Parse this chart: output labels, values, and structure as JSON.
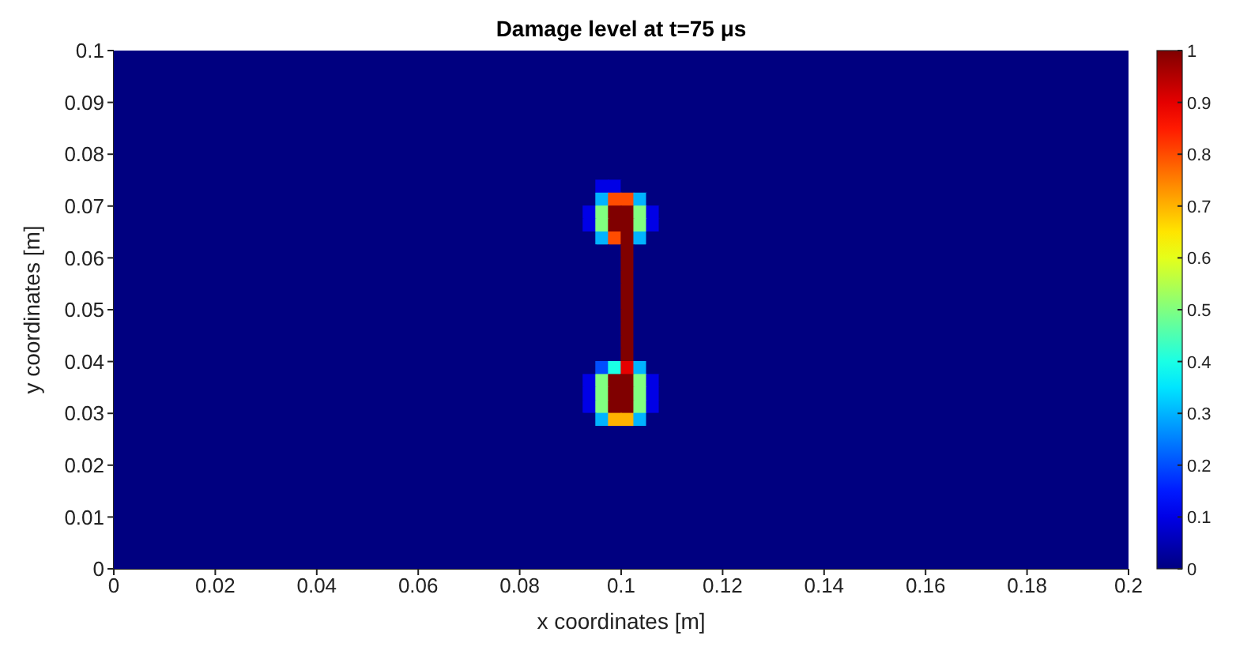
{
  "chart_data": {
    "type": "heatmap",
    "title": "Damage level at t=75 μs",
    "xlabel": "x coordinates [m]",
    "ylabel": "y coordinates [m]",
    "xlim": [
      0,
      0.2
    ],
    "xticks": [
      0,
      0.02,
      0.04,
      0.06,
      0.08,
      0.1,
      0.12,
      0.14,
      0.16,
      0.18,
      0.2
    ],
    "ylim": [
      0,
      0.1
    ],
    "yticks": [
      0,
      0.01,
      0.02,
      0.03,
      0.04,
      0.05,
      0.06,
      0.07,
      0.08,
      0.09,
      0.1
    ],
    "clim": [
      0,
      1
    ],
    "cticks": [
      0,
      0.1,
      0.2,
      0.3,
      0.4,
      0.5,
      0.6,
      0.7,
      0.8,
      0.9,
      1
    ],
    "grid": false,
    "cells": [
      [
        0,
        0,
        0,
        0,
        0,
        0,
        0,
        0,
        0,
        0,
        0,
        0,
        0,
        0,
        0,
        0,
        0,
        0,
        0,
        0,
        0,
        0,
        0,
        0,
        0,
        0,
        0,
        0,
        0,
        0,
        0,
        0,
        0,
        0,
        0,
        0,
        0,
        0,
        0,
        0,
        0,
        0,
        0,
        0,
        0,
        0,
        0,
        0,
        0,
        0,
        0,
        0,
        0,
        0,
        0,
        0,
        0,
        0,
        0,
        0,
        0,
        0,
        0,
        0,
        0,
        0,
        0,
        0,
        0,
        0,
        0,
        0,
        0,
        0,
        0,
        0,
        0,
        0,
        0,
        0
      ],
      [
        0,
        0,
        0,
        0,
        0,
        0,
        0,
        0,
        0,
        0,
        0,
        0,
        0,
        0,
        0,
        0,
        0,
        0,
        0,
        0,
        0,
        0,
        0,
        0,
        0,
        0,
        0,
        0,
        0,
        0,
        0,
        0,
        0,
        0,
        0,
        0,
        0,
        0,
        0,
        0,
        0,
        0,
        0,
        0,
        0,
        0,
        0,
        0,
        0,
        0,
        0,
        0,
        0,
        0,
        0,
        0,
        0,
        0,
        0,
        0,
        0,
        0,
        0,
        0,
        0,
        0,
        0,
        0,
        0,
        0,
        0,
        0,
        0,
        0,
        0,
        0,
        0,
        0,
        0,
        0
      ],
      [
        0,
        0,
        0,
        0,
        0,
        0,
        0,
        0,
        0,
        0,
        0,
        0,
        0,
        0,
        0,
        0,
        0,
        0,
        0,
        0,
        0,
        0,
        0,
        0,
        0,
        0,
        0,
        0,
        0,
        0,
        0,
        0,
        0,
        0,
        0,
        0,
        0,
        0,
        0,
        0,
        0,
        0,
        0,
        0,
        0,
        0,
        0,
        0,
        0,
        0,
        0,
        0,
        0,
        0,
        0,
        0,
        0,
        0,
        0,
        0,
        0,
        0,
        0,
        0,
        0,
        0,
        0,
        0,
        0,
        0,
        0,
        0,
        0,
        0,
        0,
        0,
        0,
        0,
        0,
        0
      ],
      [
        0,
        0,
        0,
        0,
        0,
        0,
        0,
        0,
        0,
        0,
        0,
        0,
        0,
        0,
        0,
        0,
        0,
        0,
        0,
        0,
        0,
        0,
        0,
        0,
        0,
        0,
        0,
        0,
        0,
        0,
        0,
        0,
        0,
        0,
        0,
        0,
        0,
        0,
        0,
        0,
        0,
        0,
        0,
        0,
        0,
        0,
        0,
        0,
        0,
        0,
        0,
        0,
        0,
        0,
        0,
        0,
        0,
        0,
        0,
        0,
        0,
        0,
        0,
        0,
        0,
        0,
        0,
        0,
        0,
        0,
        0,
        0,
        0,
        0,
        0,
        0,
        0,
        0,
        0,
        0
      ],
      [
        0,
        0,
        0,
        0,
        0,
        0,
        0,
        0,
        0,
        0,
        0,
        0,
        0,
        0,
        0,
        0,
        0,
        0,
        0,
        0,
        0,
        0,
        0,
        0,
        0,
        0,
        0,
        0,
        0,
        0,
        0,
        0,
        0,
        0,
        0,
        0,
        0,
        0,
        0,
        0,
        0,
        0,
        0,
        0,
        0,
        0,
        0,
        0,
        0,
        0,
        0,
        0,
        0,
        0,
        0,
        0,
        0,
        0,
        0,
        0,
        0,
        0,
        0,
        0,
        0,
        0,
        0,
        0,
        0,
        0,
        0,
        0,
        0,
        0,
        0,
        0,
        0,
        0,
        0,
        0
      ],
      [
        0,
        0,
        0,
        0,
        0,
        0,
        0,
        0,
        0,
        0,
        0,
        0,
        0,
        0,
        0,
        0,
        0,
        0,
        0,
        0,
        0,
        0,
        0,
        0,
        0,
        0,
        0,
        0,
        0,
        0,
        0,
        0,
        0,
        0,
        0,
        0,
        0,
        0,
        0,
        0,
        0,
        0,
        0,
        0,
        0,
        0,
        0,
        0,
        0,
        0,
        0,
        0,
        0,
        0,
        0,
        0,
        0,
        0,
        0,
        0,
        0,
        0,
        0,
        0,
        0,
        0,
        0,
        0,
        0,
        0,
        0,
        0,
        0,
        0,
        0,
        0,
        0,
        0,
        0,
        0
      ],
      [
        0,
        0,
        0,
        0,
        0,
        0,
        0,
        0,
        0,
        0,
        0,
        0,
        0,
        0,
        0,
        0,
        0,
        0,
        0,
        0,
        0,
        0,
        0,
        0,
        0,
        0,
        0,
        0,
        0,
        0,
        0,
        0,
        0,
        0,
        0,
        0,
        0,
        0,
        0,
        0,
        0,
        0,
        0,
        0,
        0,
        0,
        0,
        0,
        0,
        0,
        0,
        0,
        0,
        0,
        0,
        0,
        0,
        0,
        0,
        0,
        0,
        0,
        0,
        0,
        0,
        0,
        0,
        0,
        0,
        0,
        0,
        0,
        0,
        0,
        0,
        0,
        0,
        0,
        0,
        0
      ],
      [
        0,
        0,
        0,
        0,
        0,
        0,
        0,
        0,
        0,
        0,
        0,
        0,
        0,
        0,
        0,
        0,
        0,
        0,
        0,
        0,
        0,
        0,
        0,
        0,
        0,
        0,
        0,
        0,
        0,
        0,
        0,
        0,
        0,
        0,
        0,
        0,
        0,
        0,
        0,
        0,
        0,
        0,
        0,
        0,
        0,
        0,
        0,
        0,
        0,
        0,
        0,
        0,
        0,
        0,
        0,
        0,
        0,
        0,
        0,
        0,
        0,
        0,
        0,
        0,
        0,
        0,
        0,
        0,
        0,
        0,
        0,
        0,
        0,
        0,
        0,
        0,
        0,
        0,
        0,
        0
      ],
      [
        0,
        0,
        0,
        0,
        0,
        0,
        0,
        0,
        0,
        0,
        0,
        0,
        0,
        0,
        0,
        0,
        0,
        0,
        0,
        0,
        0,
        0,
        0,
        0,
        0,
        0,
        0,
        0,
        0,
        0,
        0,
        0,
        0,
        0,
        0,
        0,
        0,
        0,
        0,
        0,
        0,
        0,
        0,
        0,
        0,
        0,
        0,
        0,
        0,
        0,
        0,
        0,
        0,
        0,
        0,
        0,
        0,
        0,
        0,
        0,
        0,
        0,
        0,
        0,
        0,
        0,
        0,
        0,
        0,
        0,
        0,
        0,
        0,
        0,
        0,
        0,
        0,
        0,
        0,
        0
      ],
      [
        0,
        0,
        0,
        0,
        0,
        0,
        0,
        0,
        0,
        0,
        0,
        0,
        0,
        0,
        0,
        0,
        0,
        0,
        0,
        0,
        0,
        0,
        0,
        0,
        0,
        0,
        0,
        0,
        0,
        0,
        0,
        0,
        0,
        0,
        0,
        0,
        0,
        0,
        0,
        0,
        0,
        0,
        0,
        0,
        0,
        0,
        0,
        0,
        0,
        0,
        0,
        0,
        0,
        0,
        0,
        0,
        0,
        0,
        0,
        0,
        0,
        0,
        0,
        0,
        0,
        0,
        0,
        0,
        0,
        0,
        0,
        0,
        0,
        0,
        0,
        0,
        0,
        0,
        0,
        0
      ],
      [
        0,
        0,
        0,
        0,
        0,
        0,
        0,
        0,
        0,
        0,
        0,
        0,
        0,
        0,
        0,
        0,
        0,
        0,
        0,
        0,
        0,
        0,
        0,
        0,
        0,
        0,
        0,
        0,
        0,
        0,
        0,
        0,
        0,
        0,
        0,
        0,
        0,
        0,
        0.1,
        0.1,
        0,
        0,
        0,
        0,
        0,
        0,
        0,
        0,
        0,
        0,
        0,
        0,
        0,
        0,
        0,
        0,
        0,
        0,
        0,
        0,
        0,
        0,
        0,
        0,
        0,
        0,
        0,
        0,
        0,
        0,
        0,
        0,
        0,
        0,
        0,
        0,
        0,
        0,
        0,
        0
      ],
      [
        0,
        0,
        0,
        0,
        0,
        0,
        0,
        0,
        0,
        0,
        0,
        0,
        0,
        0,
        0,
        0,
        0,
        0,
        0,
        0,
        0,
        0,
        0,
        0,
        0,
        0,
        0,
        0,
        0,
        0,
        0,
        0,
        0,
        0,
        0,
        0,
        0,
        0,
        0.3,
        0.8,
        0.8,
        0.3,
        0,
        0,
        0,
        0,
        0,
        0,
        0,
        0,
        0,
        0,
        0,
        0,
        0,
        0,
        0,
        0,
        0,
        0,
        0,
        0,
        0,
        0,
        0,
        0,
        0,
        0,
        0,
        0,
        0,
        0,
        0,
        0,
        0,
        0,
        0,
        0,
        0,
        0
      ],
      [
        0,
        0,
        0,
        0,
        0,
        0,
        0,
        0,
        0,
        0,
        0,
        0,
        0,
        0,
        0,
        0,
        0,
        0,
        0,
        0,
        0,
        0,
        0,
        0,
        0,
        0,
        0,
        0,
        0,
        0,
        0,
        0,
        0,
        0,
        0,
        0,
        0,
        0.1,
        0.5,
        1,
        1,
        0.5,
        0.1,
        0,
        0,
        0,
        0,
        0,
        0,
        0,
        0,
        0,
        0,
        0,
        0,
        0,
        0,
        0,
        0,
        0,
        0,
        0,
        0,
        0,
        0,
        0,
        0,
        0,
        0,
        0,
        0,
        0,
        0,
        0,
        0,
        0,
        0,
        0,
        0,
        0
      ],
      [
        0,
        0,
        0,
        0,
        0,
        0,
        0,
        0,
        0,
        0,
        0,
        0,
        0,
        0,
        0,
        0,
        0,
        0,
        0,
        0,
        0,
        0,
        0,
        0,
        0,
        0,
        0,
        0,
        0,
        0,
        0,
        0,
        0,
        0,
        0,
        0,
        0,
        0.1,
        0.5,
        1,
        1,
        0.5,
        0.1,
        0,
        0,
        0,
        0,
        0,
        0,
        0,
        0,
        0,
        0,
        0,
        0,
        0,
        0,
        0,
        0,
        0,
        0,
        0,
        0,
        0,
        0,
        0,
        0,
        0,
        0,
        0,
        0,
        0,
        0,
        0,
        0,
        0,
        0,
        0,
        0,
        0
      ],
      [
        0,
        0,
        0,
        0,
        0,
        0,
        0,
        0,
        0,
        0,
        0,
        0,
        0,
        0,
        0,
        0,
        0,
        0,
        0,
        0,
        0,
        0,
        0,
        0,
        0,
        0,
        0,
        0,
        0,
        0,
        0,
        0,
        0,
        0,
        0,
        0,
        0,
        0,
        0.3,
        0.8,
        1,
        0.3,
        0,
        0,
        0,
        0,
        0,
        0,
        0,
        0,
        0,
        0,
        0,
        0,
        0,
        0,
        0,
        0,
        0,
        0,
        0,
        0,
        0,
        0,
        0,
        0,
        0,
        0,
        0,
        0,
        0,
        0,
        0,
        0,
        0,
        0,
        0,
        0,
        0,
        0
      ],
      [
        0,
        0,
        0,
        0,
        0,
        0,
        0,
        0,
        0,
        0,
        0,
        0,
        0,
        0,
        0,
        0,
        0,
        0,
        0,
        0,
        0,
        0,
        0,
        0,
        0,
        0,
        0,
        0,
        0,
        0,
        0,
        0,
        0,
        0,
        0,
        0,
        0,
        0,
        0,
        0,
        1,
        0,
        0,
        0,
        0,
        0,
        0,
        0,
        0,
        0,
        0,
        0,
        0,
        0,
        0,
        0,
        0,
        0,
        0,
        0,
        0,
        0,
        0,
        0,
        0,
        0,
        0,
        0,
        0,
        0,
        0,
        0,
        0,
        0,
        0,
        0,
        0,
        0,
        0,
        0
      ],
      [
        0,
        0,
        0,
        0,
        0,
        0,
        0,
        0,
        0,
        0,
        0,
        0,
        0,
        0,
        0,
        0,
        0,
        0,
        0,
        0,
        0,
        0,
        0,
        0,
        0,
        0,
        0,
        0,
        0,
        0,
        0,
        0,
        0,
        0,
        0,
        0,
        0,
        0,
        0,
        0,
        1,
        0,
        0,
        0,
        0,
        0,
        0,
        0,
        0,
        0,
        0,
        0,
        0,
        0,
        0,
        0,
        0,
        0,
        0,
        0,
        0,
        0,
        0,
        0,
        0,
        0,
        0,
        0,
        0,
        0,
        0,
        0,
        0,
        0,
        0,
        0,
        0,
        0,
        0,
        0
      ],
      [
        0,
        0,
        0,
        0,
        0,
        0,
        0,
        0,
        0,
        0,
        0,
        0,
        0,
        0,
        0,
        0,
        0,
        0,
        0,
        0,
        0,
        0,
        0,
        0,
        0,
        0,
        0,
        0,
        0,
        0,
        0,
        0,
        0,
        0,
        0,
        0,
        0,
        0,
        0,
        0,
        1,
        0,
        0,
        0,
        0,
        0,
        0,
        0,
        0,
        0,
        0,
        0,
        0,
        0,
        0,
        0,
        0,
        0,
        0,
        0,
        0,
        0,
        0,
        0,
        0,
        0,
        0,
        0,
        0,
        0,
        0,
        0,
        0,
        0,
        0,
        0,
        0,
        0,
        0,
        0
      ],
      [
        0,
        0,
        0,
        0,
        0,
        0,
        0,
        0,
        0,
        0,
        0,
        0,
        0,
        0,
        0,
        0,
        0,
        0,
        0,
        0,
        0,
        0,
        0,
        0,
        0,
        0,
        0,
        0,
        0,
        0,
        0,
        0,
        0,
        0,
        0,
        0,
        0,
        0,
        0,
        0,
        1,
        0,
        0,
        0,
        0,
        0,
        0,
        0,
        0,
        0,
        0,
        0,
        0,
        0,
        0,
        0,
        0,
        0,
        0,
        0,
        0,
        0,
        0,
        0,
        0,
        0,
        0,
        0,
        0,
        0,
        0,
        0,
        0,
        0,
        0,
        0,
        0,
        0,
        0,
        0
      ],
      [
        0,
        0,
        0,
        0,
        0,
        0,
        0,
        0,
        0,
        0,
        0,
        0,
        0,
        0,
        0,
        0,
        0,
        0,
        0,
        0,
        0,
        0,
        0,
        0,
        0,
        0,
        0,
        0,
        0,
        0,
        0,
        0,
        0,
        0,
        0,
        0,
        0,
        0,
        0,
        0,
        1,
        0,
        0,
        0,
        0,
        0,
        0,
        0,
        0,
        0,
        0,
        0,
        0,
        0,
        0,
        0,
        0,
        0,
        0,
        0,
        0,
        0,
        0,
        0,
        0,
        0,
        0,
        0,
        0,
        0,
        0,
        0,
        0,
        0,
        0,
        0,
        0,
        0,
        0,
        0
      ],
      [
        0,
        0,
        0,
        0,
        0,
        0,
        0,
        0,
        0,
        0,
        0,
        0,
        0,
        0,
        0,
        0,
        0,
        0,
        0,
        0,
        0,
        0,
        0,
        0,
        0,
        0,
        0,
        0,
        0,
        0,
        0,
        0,
        0,
        0,
        0,
        0,
        0,
        0,
        0,
        0,
        1,
        0,
        0,
        0,
        0,
        0,
        0,
        0,
        0,
        0,
        0,
        0,
        0,
        0,
        0,
        0,
        0,
        0,
        0,
        0,
        0,
        0,
        0,
        0,
        0,
        0,
        0,
        0,
        0,
        0,
        0,
        0,
        0,
        0,
        0,
        0,
        0,
        0,
        0,
        0
      ],
      [
        0,
        0,
        0,
        0,
        0,
        0,
        0,
        0,
        0,
        0,
        0,
        0,
        0,
        0,
        0,
        0,
        0,
        0,
        0,
        0,
        0,
        0,
        0,
        0,
        0,
        0,
        0,
        0,
        0,
        0,
        0,
        0,
        0,
        0,
        0,
        0,
        0,
        0,
        0,
        0,
        1,
        0,
        0,
        0,
        0,
        0,
        0,
        0,
        0,
        0,
        0,
        0,
        0,
        0,
        0,
        0,
        0,
        0,
        0,
        0,
        0,
        0,
        0,
        0,
        0,
        0,
        0,
        0,
        0,
        0,
        0,
        0,
        0,
        0,
        0,
        0,
        0,
        0,
        0,
        0
      ],
      [
        0,
        0,
        0,
        0,
        0,
        0,
        0,
        0,
        0,
        0,
        0,
        0,
        0,
        0,
        0,
        0,
        0,
        0,
        0,
        0,
        0,
        0,
        0,
        0,
        0,
        0,
        0,
        0,
        0,
        0,
        0,
        0,
        0,
        0,
        0,
        0,
        0,
        0,
        0,
        0,
        1,
        0,
        0,
        0,
        0,
        0,
        0,
        0,
        0,
        0,
        0,
        0,
        0,
        0,
        0,
        0,
        0,
        0,
        0,
        0,
        0,
        0,
        0,
        0,
        0,
        0,
        0,
        0,
        0,
        0,
        0,
        0,
        0,
        0,
        0,
        0,
        0,
        0,
        0,
        0
      ],
      [
        0,
        0,
        0,
        0,
        0,
        0,
        0,
        0,
        0,
        0,
        0,
        0,
        0,
        0,
        0,
        0,
        0,
        0,
        0,
        0,
        0,
        0,
        0,
        0,
        0,
        0,
        0,
        0,
        0,
        0,
        0,
        0,
        0,
        0,
        0,
        0,
        0,
        0,
        0,
        0,
        1,
        0,
        0,
        0,
        0,
        0,
        0,
        0,
        0,
        0,
        0,
        0,
        0,
        0,
        0,
        0,
        0,
        0,
        0,
        0,
        0,
        0,
        0,
        0,
        0,
        0,
        0,
        0,
        0,
        0,
        0,
        0,
        0,
        0,
        0,
        0,
        0,
        0,
        0,
        0
      ],
      [
        0,
        0,
        0,
        0,
        0,
        0,
        0,
        0,
        0,
        0,
        0,
        0,
        0,
        0,
        0,
        0,
        0,
        0,
        0,
        0,
        0,
        0,
        0,
        0,
        0,
        0,
        0,
        0,
        0,
        0,
        0,
        0,
        0,
        0,
        0,
        0,
        0,
        0,
        0.2,
        0.4,
        0.9,
        0.3,
        0,
        0,
        0,
        0,
        0,
        0,
        0,
        0,
        0,
        0,
        0,
        0,
        0,
        0,
        0,
        0,
        0,
        0,
        0,
        0,
        0,
        0,
        0,
        0,
        0,
        0,
        0,
        0,
        0,
        0,
        0,
        0,
        0,
        0,
        0,
        0,
        0,
        0
      ],
      [
        0,
        0,
        0,
        0,
        0,
        0,
        0,
        0,
        0,
        0,
        0,
        0,
        0,
        0,
        0,
        0,
        0,
        0,
        0,
        0,
        0,
        0,
        0,
        0,
        0,
        0,
        0,
        0,
        0,
        0,
        0,
        0,
        0,
        0,
        0,
        0,
        0,
        0.1,
        0.5,
        1,
        1,
        0.5,
        0.1,
        0,
        0,
        0,
        0,
        0,
        0,
        0,
        0,
        0,
        0,
        0,
        0,
        0,
        0,
        0,
        0,
        0,
        0,
        0,
        0,
        0,
        0,
        0,
        0,
        0,
        0,
        0,
        0,
        0,
        0,
        0,
        0,
        0,
        0,
        0,
        0,
        0
      ],
      [
        0,
        0,
        0,
        0,
        0,
        0,
        0,
        0,
        0,
        0,
        0,
        0,
        0,
        0,
        0,
        0,
        0,
        0,
        0,
        0,
        0,
        0,
        0,
        0,
        0,
        0,
        0,
        0,
        0,
        0,
        0,
        0,
        0,
        0,
        0,
        0,
        0,
        0.1,
        0.5,
        1,
        1,
        0.5,
        0.1,
        0,
        0,
        0,
        0,
        0,
        0,
        0,
        0,
        0,
        0,
        0,
        0,
        0,
        0,
        0,
        0,
        0,
        0,
        0,
        0,
        0,
        0,
        0,
        0,
        0,
        0,
        0,
        0,
        0,
        0,
        0,
        0,
        0,
        0,
        0,
        0,
        0
      ],
      [
        0,
        0,
        0,
        0,
        0,
        0,
        0,
        0,
        0,
        0,
        0,
        0,
        0,
        0,
        0,
        0,
        0,
        0,
        0,
        0,
        0,
        0,
        0,
        0,
        0,
        0,
        0,
        0,
        0,
        0,
        0,
        0,
        0,
        0,
        0,
        0,
        0,
        0.1,
        0.5,
        1,
        1,
        0.5,
        0.1,
        0,
        0,
        0,
        0,
        0,
        0,
        0,
        0,
        0,
        0,
        0,
        0,
        0,
        0,
        0,
        0,
        0,
        0,
        0,
        0,
        0,
        0,
        0,
        0,
        0,
        0,
        0,
        0,
        0,
        0,
        0,
        0,
        0,
        0,
        0,
        0,
        0
      ],
      [
        0,
        0,
        0,
        0,
        0,
        0,
        0,
        0,
        0,
        0,
        0,
        0,
        0,
        0,
        0,
        0,
        0,
        0,
        0,
        0,
        0,
        0,
        0,
        0,
        0,
        0,
        0,
        0,
        0,
        0,
        0,
        0,
        0,
        0,
        0,
        0,
        0,
        0,
        0.3,
        0.7,
        0.7,
        0.3,
        0,
        0,
        0,
        0,
        0,
        0,
        0,
        0,
        0,
        0,
        0,
        0,
        0,
        0,
        0,
        0,
        0,
        0,
        0,
        0,
        0,
        0,
        0,
        0,
        0,
        0,
        0,
        0,
        0,
        0,
        0,
        0,
        0,
        0,
        0,
        0,
        0,
        0
      ],
      [
        0,
        0,
        0,
        0,
        0,
        0,
        0,
        0,
        0,
        0,
        0,
        0,
        0,
        0,
        0,
        0,
        0,
        0,
        0,
        0,
        0,
        0,
        0,
        0,
        0,
        0,
        0,
        0,
        0,
        0,
        0,
        0,
        0,
        0,
        0,
        0,
        0,
        0,
        0,
        0,
        0,
        0,
        0,
        0,
        0,
        0,
        0,
        0,
        0,
        0,
        0,
        0,
        0,
        0,
        0,
        0,
        0,
        0,
        0,
        0,
        0,
        0,
        0,
        0,
        0,
        0,
        0,
        0,
        0,
        0,
        0,
        0,
        0,
        0,
        0,
        0,
        0,
        0,
        0,
        0
      ],
      [
        0,
        0,
        0,
        0,
        0,
        0,
        0,
        0,
        0,
        0,
        0,
        0,
        0,
        0,
        0,
        0,
        0,
        0,
        0,
        0,
        0,
        0,
        0,
        0,
        0,
        0,
        0,
        0,
        0,
        0,
        0,
        0,
        0,
        0,
        0,
        0,
        0,
        0,
        0,
        0,
        0,
        0,
        0,
        0,
        0,
        0,
        0,
        0,
        0,
        0,
        0,
        0,
        0,
        0,
        0,
        0,
        0,
        0,
        0,
        0,
        0,
        0,
        0,
        0,
        0,
        0,
        0,
        0,
        0,
        0,
        0,
        0,
        0,
        0,
        0,
        0,
        0,
        0,
        0,
        0
      ],
      [
        0,
        0,
        0,
        0,
        0,
        0,
        0,
        0,
        0,
        0,
        0,
        0,
        0,
        0,
        0,
        0,
        0,
        0,
        0,
        0,
        0,
        0,
        0,
        0,
        0,
        0,
        0,
        0,
        0,
        0,
        0,
        0,
        0,
        0,
        0,
        0,
        0,
        0,
        0,
        0,
        0,
        0,
        0,
        0,
        0,
        0,
        0,
        0,
        0,
        0,
        0,
        0,
        0,
        0,
        0,
        0,
        0,
        0,
        0,
        0,
        0,
        0,
        0,
        0,
        0,
        0,
        0,
        0,
        0,
        0,
        0,
        0,
        0,
        0,
        0,
        0,
        0,
        0,
        0,
        0
      ],
      [
        0,
        0,
        0,
        0,
        0,
        0,
        0,
        0,
        0,
        0,
        0,
        0,
        0,
        0,
        0,
        0,
        0,
        0,
        0,
        0,
        0,
        0,
        0,
        0,
        0,
        0,
        0,
        0,
        0,
        0,
        0,
        0,
        0,
        0,
        0,
        0,
        0,
        0,
        0,
        0,
        0,
        0,
        0,
        0,
        0,
        0,
        0,
        0,
        0,
        0,
        0,
        0,
        0,
        0,
        0,
        0,
        0,
        0,
        0,
        0,
        0,
        0,
        0,
        0,
        0,
        0,
        0,
        0,
        0,
        0,
        0,
        0,
        0,
        0,
        0,
        0,
        0,
        0,
        0,
        0
      ],
      [
        0,
        0,
        0,
        0,
        0,
        0,
        0,
        0,
        0,
        0,
        0,
        0,
        0,
        0,
        0,
        0,
        0,
        0,
        0,
        0,
        0,
        0,
        0,
        0,
        0,
        0,
        0,
        0,
        0,
        0,
        0,
        0,
        0,
        0,
        0,
        0,
        0,
        0,
        0,
        0,
        0,
        0,
        0,
        0,
        0,
        0,
        0,
        0,
        0,
        0,
        0,
        0,
        0,
        0,
        0,
        0,
        0,
        0,
        0,
        0,
        0,
        0,
        0,
        0,
        0,
        0,
        0,
        0,
        0,
        0,
        0,
        0,
        0,
        0,
        0,
        0,
        0,
        0,
        0,
        0
      ],
      [
        0,
        0,
        0,
        0,
        0,
        0,
        0,
        0,
        0,
        0,
        0,
        0,
        0,
        0,
        0,
        0,
        0,
        0,
        0,
        0,
        0,
        0,
        0,
        0,
        0,
        0,
        0,
        0,
        0,
        0,
        0,
        0,
        0,
        0,
        0,
        0,
        0,
        0,
        0,
        0,
        0,
        0,
        0,
        0,
        0,
        0,
        0,
        0,
        0,
        0,
        0,
        0,
        0,
        0,
        0,
        0,
        0,
        0,
        0,
        0,
        0,
        0,
        0,
        0,
        0,
        0,
        0,
        0,
        0,
        0,
        0,
        0,
        0,
        0,
        0,
        0,
        0,
        0,
        0,
        0
      ],
      [
        0,
        0,
        0,
        0,
        0,
        0,
        0,
        0,
        0,
        0,
        0,
        0,
        0,
        0,
        0,
        0,
        0,
        0,
        0,
        0,
        0,
        0,
        0,
        0,
        0,
        0,
        0,
        0,
        0,
        0,
        0,
        0,
        0,
        0,
        0,
        0,
        0,
        0,
        0,
        0,
        0,
        0,
        0,
        0,
        0,
        0,
        0,
        0,
        0,
        0,
        0,
        0,
        0,
        0,
        0,
        0,
        0,
        0,
        0,
        0,
        0,
        0,
        0,
        0,
        0,
        0,
        0,
        0,
        0,
        0,
        0,
        0,
        0,
        0,
        0,
        0,
        0,
        0,
        0,
        0
      ],
      [
        0,
        0,
        0,
        0,
        0,
        0,
        0,
        0,
        0,
        0,
        0,
        0,
        0,
        0,
        0,
        0,
        0,
        0,
        0,
        0,
        0,
        0,
        0,
        0,
        0,
        0,
        0,
        0,
        0,
        0,
        0,
        0,
        0,
        0,
        0,
        0,
        0,
        0,
        0,
        0,
        0,
        0,
        0,
        0,
        0,
        0,
        0,
        0,
        0,
        0,
        0,
        0,
        0,
        0,
        0,
        0,
        0,
        0,
        0,
        0,
        0,
        0,
        0,
        0,
        0,
        0,
        0,
        0,
        0,
        0,
        0,
        0,
        0,
        0,
        0,
        0,
        0,
        0,
        0,
        0
      ],
      [
        0,
        0,
        0,
        0,
        0,
        0,
        0,
        0,
        0,
        0,
        0,
        0,
        0,
        0,
        0,
        0,
        0,
        0,
        0,
        0,
        0,
        0,
        0,
        0,
        0,
        0,
        0,
        0,
        0,
        0,
        0,
        0,
        0,
        0,
        0,
        0,
        0,
        0,
        0,
        0,
        0,
        0,
        0,
        0,
        0,
        0,
        0,
        0,
        0,
        0,
        0,
        0,
        0,
        0,
        0,
        0,
        0,
        0,
        0,
        0,
        0,
        0,
        0,
        0,
        0,
        0,
        0,
        0,
        0,
        0,
        0,
        0,
        0,
        0,
        0,
        0,
        0,
        0,
        0,
        0
      ],
      [
        0,
        0,
        0,
        0,
        0,
        0,
        0,
        0,
        0,
        0,
        0,
        0,
        0,
        0,
        0,
        0,
        0,
        0,
        0,
        0,
        0,
        0,
        0,
        0,
        0,
        0,
        0,
        0,
        0,
        0,
        0,
        0,
        0,
        0,
        0,
        0,
        0,
        0,
        0,
        0,
        0,
        0,
        0,
        0,
        0,
        0,
        0,
        0,
        0,
        0,
        0,
        0,
        0,
        0,
        0,
        0,
        0,
        0,
        0,
        0,
        0,
        0,
        0,
        0,
        0,
        0,
        0,
        0,
        0,
        0,
        0,
        0,
        0,
        0,
        0,
        0,
        0,
        0,
        0,
        0
      ],
      [
        0,
        0,
        0,
        0,
        0,
        0,
        0,
        0,
        0,
        0,
        0,
        0,
        0,
        0,
        0,
        0,
        0,
        0,
        0,
        0,
        0,
        0,
        0,
        0,
        0,
        0,
        0,
        0,
        0,
        0,
        0,
        0,
        0,
        0,
        0,
        0,
        0,
        0,
        0,
        0,
        0,
        0,
        0,
        0,
        0,
        0,
        0,
        0,
        0,
        0,
        0,
        0,
        0,
        0,
        0,
        0,
        0,
        0,
        0,
        0,
        0,
        0,
        0,
        0,
        0,
        0,
        0,
        0,
        0,
        0,
        0,
        0,
        0,
        0,
        0,
        0,
        0,
        0,
        0,
        0
      ]
    ]
  }
}
